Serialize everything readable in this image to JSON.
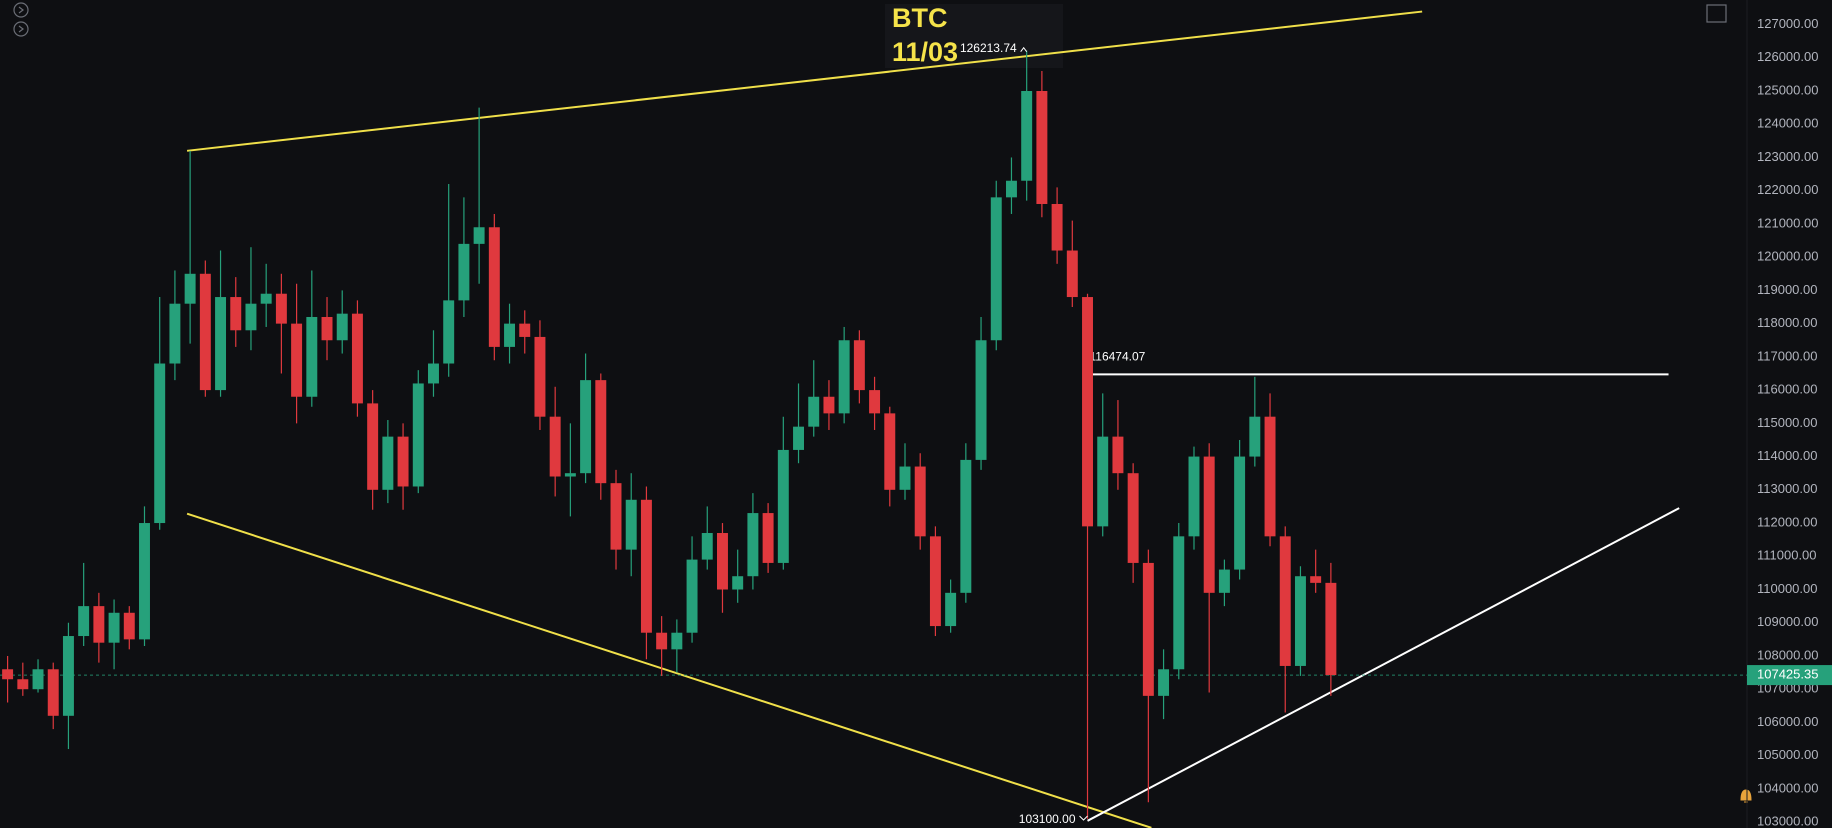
{
  "chart_data": {
    "type": "candlestick",
    "title": "BTC",
    "subtitle": "11/03",
    "up_color": "#26a17b",
    "down_color": "#e0393e",
    "grid": false,
    "ylim": [
      102824,
      127738
    ],
    "yticks": [
      {
        "value": 103000,
        "label": "103000.00"
      },
      {
        "value": 104000,
        "label": "104000.00"
      },
      {
        "value": 105000,
        "label": "105000.00"
      },
      {
        "value": 106000,
        "label": "106000.00"
      },
      {
        "value": 107000,
        "label": "107000.00"
      },
      {
        "value": 108000,
        "label": "108000.00"
      },
      {
        "value": 109000,
        "label": "109000.00"
      },
      {
        "value": 110000,
        "label": "110000.00"
      },
      {
        "value": 111000,
        "label": "111000.00"
      },
      {
        "value": 112000,
        "label": "112000.00"
      },
      {
        "value": 113000,
        "label": "113000.00"
      },
      {
        "value": 114000,
        "label": "114000.00"
      },
      {
        "value": 115000,
        "label": "115000.00"
      },
      {
        "value": 116000,
        "label": "116000.00"
      },
      {
        "value": 117000,
        "label": "117000.00"
      },
      {
        "value": 118000,
        "label": "118000.00"
      },
      {
        "value": 119000,
        "label": "119000.00"
      },
      {
        "value": 120000,
        "label": "120000.00"
      },
      {
        "value": 121000,
        "label": "121000.00"
      },
      {
        "value": 122000,
        "label": "122000.00"
      },
      {
        "value": 123000,
        "label": "123000.00"
      },
      {
        "value": 124000,
        "label": "124000.00"
      },
      {
        "value": 125000,
        "label": "125000.00"
      },
      {
        "value": 126000,
        "label": "126000.00"
      },
      {
        "value": 127000,
        "label": "127000.00"
      }
    ],
    "open": [
      107600,
      107300,
      107000,
      107600,
      106200,
      108600,
      109500,
      108400,
      109300,
      108500,
      112000,
      116800,
      118600,
      119500,
      116000,
      118800,
      117800,
      118600,
      118900,
      118000,
      115800,
      118200,
      117500,
      118300,
      115600,
      113000,
      114600,
      113100,
      116200,
      116800,
      118700,
      120400,
      120900,
      117300,
      118000,
      117600,
      115200,
      113400,
      113500,
      116300,
      113200,
      111200,
      112700,
      108700,
      108200,
      108700,
      110900,
      111700,
      110000,
      110400,
      112300,
      110800,
      114200,
      114900,
      115800,
      115300,
      117500,
      116000,
      115300,
      113000,
      113700,
      111600,
      108900,
      109900,
      113900,
      117500,
      121800,
      122300,
      125000,
      121600,
      120200,
      118800,
      111900,
      114600,
      113500,
      110800,
      106800,
      107600,
      111600,
      114000,
      109900,
      110600,
      114000,
      115200,
      111600,
      107700,
      110400,
      110200
    ],
    "high": [
      108000,
      107800,
      107900,
      107800,
      109000,
      110800,
      109900,
      109700,
      109500,
      112500,
      118800,
      119600,
      123200,
      119900,
      120200,
      119400,
      120300,
      119800,
      119500,
      119200,
      119600,
      118800,
      119000,
      118700,
      116000,
      115100,
      115000,
      116600,
      117800,
      122200,
      121800,
      124500,
      121300,
      118600,
      118400,
      118100,
      116100,
      115000,
      117100,
      116500,
      113600,
      113500,
      113100,
      109200,
      109100,
      111600,
      112500,
      112000,
      111200,
      112900,
      112600,
      115200,
      116200,
      116900,
      116300,
      117900,
      117800,
      116400,
      115500,
      114400,
      114100,
      111900,
      110300,
      114400,
      118200,
      122300,
      123000,
      126213.74,
      125600,
      122100,
      121100,
      118900,
      115900,
      115700,
      113800,
      111200,
      108200,
      112000,
      114300,
      114400,
      110900,
      114500,
      116400,
      115900,
      111900,
      110700,
      111200,
      110800
    ],
    "low": [
      106600,
      106800,
      106900,
      105800,
      105200,
      108300,
      107800,
      107600,
      108200,
      108300,
      111800,
      116300,
      117400,
      115800,
      115800,
      117300,
      117200,
      117900,
      116500,
      115000,
      115500,
      116900,
      117100,
      115200,
      112400,
      112600,
      112400,
      112900,
      115800,
      116400,
      118200,
      119200,
      116900,
      116800,
      117100,
      114800,
      112800,
      112200,
      113200,
      112700,
      110600,
      110400,
      107900,
      107400,
      107500,
      108400,
      110600,
      109300,
      109600,
      110000,
      110500,
      110600,
      113800,
      114600,
      114800,
      115000,
      115600,
      114800,
      112500,
      112700,
      111200,
      108600,
      108700,
      109600,
      113600,
      117200,
      121300,
      121700,
      121200,
      119800,
      118500,
      103100,
      111600,
      113000,
      110200,
      103600,
      106100,
      107300,
      111200,
      106900,
      109500,
      110300,
      113700,
      111300,
      106300,
      107400,
      109900,
      106800
    ],
    "close": [
      107300,
      107000,
      107600,
      106200,
      108600,
      109500,
      108400,
      109300,
      108500,
      112000,
      116800,
      118600,
      119500,
      116000,
      118800,
      117800,
      118600,
      118900,
      118000,
      115800,
      118200,
      117500,
      118300,
      115600,
      113000,
      114600,
      113100,
      116200,
      116800,
      118700,
      120400,
      120900,
      117300,
      118000,
      117600,
      115200,
      113400,
      113500,
      116300,
      113200,
      111200,
      112700,
      108700,
      108200,
      108700,
      110900,
      111700,
      110000,
      110400,
      112300,
      110800,
      114200,
      114900,
      115800,
      115300,
      117500,
      116000,
      115300,
      113000,
      113700,
      111600,
      108900,
      109900,
      113900,
      117500,
      121800,
      122300,
      125000,
      121600,
      120200,
      118800,
      111900,
      114600,
      113500,
      110800,
      106800,
      107600,
      111600,
      114000,
      109900,
      110600,
      114000,
      115200,
      111600,
      107700,
      110400,
      110200,
      107425.35
    ],
    "high_label": {
      "candle": 67,
      "value": 126213.74
    },
    "low_label": {
      "candle": 71,
      "value": 103100,
      "label": "103100.00"
    },
    "level": {
      "value": 116474.07,
      "x": [
        71.0,
        109.2
      ]
    },
    "last_price": {
      "value": 107425.35,
      "color": "#26a17b"
    },
    "trendlines": [
      {
        "color": "#f0e04a",
        "x": [
          11.8,
          93.0
        ],
        "y": [
          123200,
          127390
        ]
      },
      {
        "color": "#f0e04a",
        "x": [
          11.8,
          75.2
        ],
        "y": [
          112280,
          102830
        ]
      },
      {
        "color": "#ffffff",
        "x": [
          71.0,
          109.9
        ],
        "y": [
          103040,
          112450
        ]
      }
    ]
  }
}
